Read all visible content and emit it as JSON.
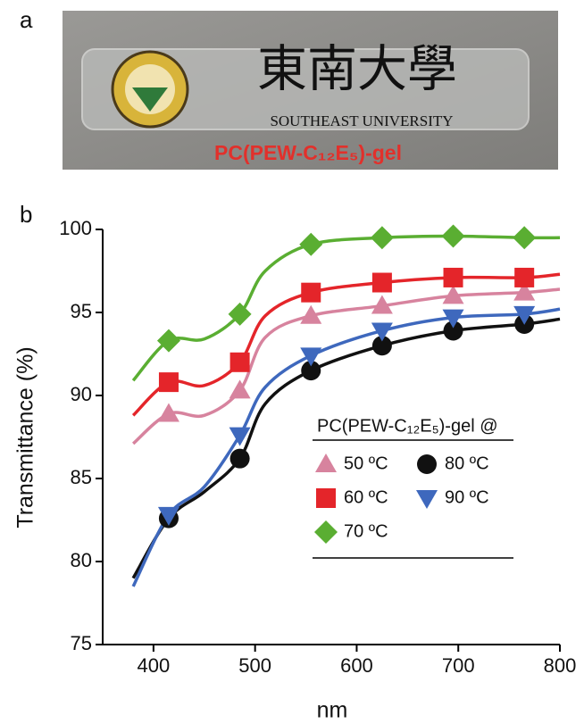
{
  "photo": {
    "label": "a",
    "logo_text": "東南大學",
    "university": "SOUTHEAST UNIVERSITY",
    "caption": "PC(PEW-C₁₂E₅)-gel"
  },
  "chart_data": {
    "type": "line",
    "panel_label": "b",
    "x_label": "nm",
    "y_label": "Transmittance (%)",
    "xlim": [
      350,
      800
    ],
    "xticks": [
      400,
      500,
      600,
      700,
      800
    ],
    "ylim": [
      75,
      100
    ],
    "yticks": [
      75,
      80,
      85,
      90,
      95,
      100
    ],
    "legend_title": "PC(PEW-C₁₂E₅)-gel @",
    "x": [
      380,
      415,
      450,
      485,
      510,
      555,
      625,
      695,
      765,
      800
    ],
    "marker_x": [
      415,
      485,
      555,
      625,
      695,
      765
    ],
    "series": [
      {
        "name": "50 ºC",
        "color": "#d7839e",
        "marker": "triangle-up",
        "values": [
          87.1,
          88.9,
          88.8,
          90.3,
          93.5,
          94.8,
          95.4,
          96.0,
          96.2,
          96.4
        ]
      },
      {
        "name": "60 ºC",
        "color": "#e4252a",
        "marker": "square",
        "values": [
          88.8,
          90.8,
          90.6,
          92.0,
          94.8,
          96.2,
          96.8,
          97.1,
          97.1,
          97.3
        ]
      },
      {
        "name": "70 ºC",
        "color": "#5aae32",
        "marker": "diamond",
        "values": [
          90.9,
          93.3,
          93.4,
          94.9,
          97.5,
          99.1,
          99.5,
          99.6,
          99.5,
          99.5
        ]
      },
      {
        "name": "80 ºC",
        "color": "#111111",
        "marker": "circle",
        "values": [
          79.0,
          82.6,
          84.2,
          86.2,
          89.5,
          91.5,
          93.0,
          93.9,
          94.3,
          94.6
        ]
      },
      {
        "name": "90 ºC",
        "color": "#3e68bd",
        "marker": "triangle-down",
        "values": [
          78.5,
          82.8,
          84.5,
          87.6,
          90.5,
          92.4,
          93.9,
          94.7,
          94.9,
          95.2
        ]
      }
    ]
  }
}
